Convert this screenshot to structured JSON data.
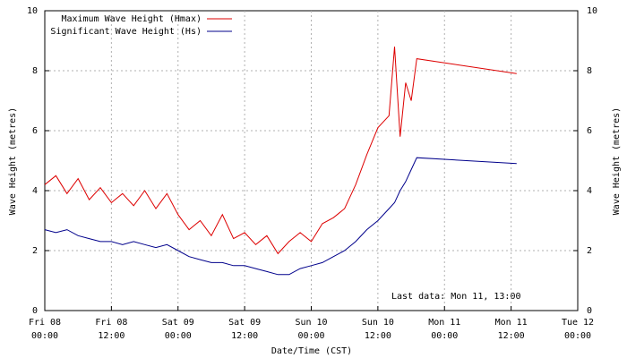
{
  "chart_data": {
    "type": "line",
    "xlabel": "Date/Time (CST)",
    "ylabel": "Wave Height (metres)",
    "y2label": "Wave Height (metres)",
    "annotation": "Last data: Mon 11, 13:00",
    "x": [
      "Fri 08 00:00",
      "Fri 08 02:00",
      "Fri 08 04:00",
      "Fri 08 06:00",
      "Fri 08 08:00",
      "Fri 08 10:00",
      "Fri 08 12:00",
      "Fri 08 14:00",
      "Fri 08 16:00",
      "Fri 08 18:00",
      "Fri 08 20:00",
      "Fri 08 22:00",
      "Sat 09 00:00",
      "Sat 09 02:00",
      "Sat 09 04:00",
      "Sat 09 06:00",
      "Sat 09 08:00",
      "Sat 09 10:00",
      "Sat 09 12:00",
      "Sat 09 14:00",
      "Sat 09 16:00",
      "Sat 09 18:00",
      "Sat 09 20:00",
      "Sat 09 22:00",
      "Sun 10 00:00",
      "Sun 10 02:00",
      "Sun 10 04:00",
      "Sun 10 06:00",
      "Sun 10 08:00",
      "Sun 10 10:00",
      "Sun 10 12:00",
      "Sun 10 14:00",
      "Sun 10 15:00",
      "Sun 10 16:00",
      "Sun 10 17:00",
      "Sun 10 18:00",
      "Sun 10 19:00",
      "Mon 11 13:00"
    ],
    "series": [
      {
        "name": "Maximum Wave Height (Hmax)",
        "color": "#dd0000",
        "values": [
          4.2,
          4.5,
          3.9,
          4.4,
          3.7,
          4.1,
          3.6,
          3.9,
          3.5,
          4.0,
          3.4,
          3.9,
          3.2,
          2.7,
          3.0,
          2.5,
          3.2,
          2.4,
          2.6,
          2.2,
          2.5,
          1.9,
          2.3,
          2.6,
          2.3,
          2.9,
          3.1,
          3.4,
          4.2,
          5.2,
          6.1,
          6.5,
          8.8,
          5.8,
          7.6,
          7.0,
          8.4,
          7.9
        ]
      },
      {
        "name": "Significant Wave Height (Hs)",
        "color": "#00008b",
        "values": [
          2.7,
          2.6,
          2.7,
          2.5,
          2.4,
          2.3,
          2.3,
          2.2,
          2.3,
          2.2,
          2.1,
          2.2,
          2.0,
          1.8,
          1.7,
          1.6,
          1.6,
          1.5,
          1.5,
          1.4,
          1.3,
          1.2,
          1.2,
          1.4,
          1.5,
          1.6,
          1.8,
          2.0,
          2.3,
          2.7,
          3.0,
          3.4,
          3.6,
          4.0,
          4.3,
          4.7,
          5.1,
          4.9
        ]
      }
    ],
    "xlim": [
      "Fri 08 00:00",
      "Tue 12 00:00"
    ],
    "xticks": [
      [
        "Fri 08",
        "00:00"
      ],
      [
        "Fri 08",
        "12:00"
      ],
      [
        "Sat 09",
        "00:00"
      ],
      [
        "Sat 09",
        "12:00"
      ],
      [
        "Sun 10",
        "00:00"
      ],
      [
        "Sun 10",
        "12:00"
      ],
      [
        "Mon 11",
        "00:00"
      ],
      [
        "Mon 11",
        "12:00"
      ],
      [
        "Tue 12",
        "00:00"
      ]
    ],
    "ylim": [
      0,
      10
    ],
    "yticks": [
      0,
      2,
      4,
      6,
      8,
      10
    ],
    "y2lim": [
      0,
      10
    ],
    "y2ticks": [
      0,
      2,
      4,
      6,
      8,
      10
    ],
    "grid": true,
    "legend": "top-left"
  }
}
